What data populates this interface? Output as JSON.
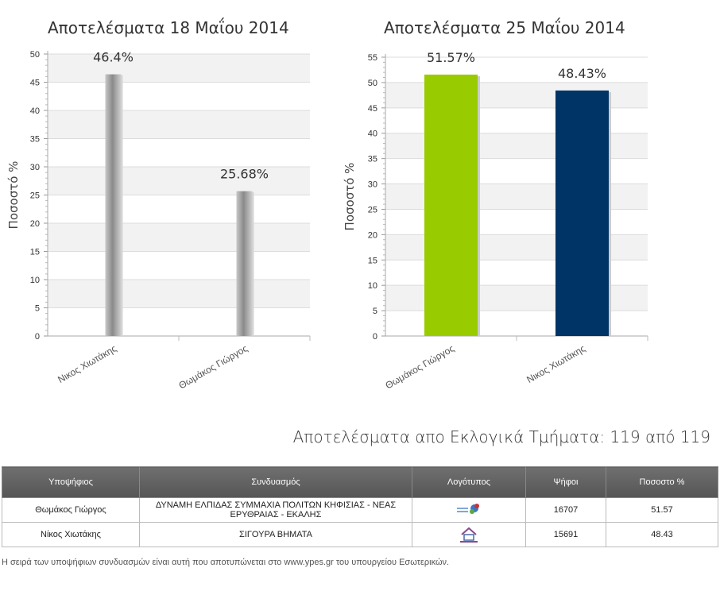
{
  "chart_data": [
    {
      "type": "bar",
      "title": "Αποτελέσματα 18 Μαΐου 2014",
      "ylabel": "Ποσοστό %",
      "ylim": [
        0,
        50
      ],
      "yticks": [
        0,
        5,
        10,
        15,
        20,
        25,
        30,
        35,
        40,
        45,
        50
      ],
      "categories": [
        "Νικος Χιωτάκης",
        "Θωμάκος Γιώργος"
      ],
      "values": [
        46.4,
        25.68
      ],
      "labels": [
        "46.4%",
        "25.68%"
      ],
      "colors": [
        "#999999",
        "#999999"
      ],
      "grid": true
    },
    {
      "type": "bar",
      "title": "Αποτελέσματα 25 Μαΐου 2014",
      "ylabel": "Ποσοστό %",
      "ylim": [
        0,
        55
      ],
      "yticks": [
        0,
        5,
        10,
        15,
        20,
        25,
        30,
        35,
        40,
        45,
        50,
        55
      ],
      "categories": [
        "Θωμάκος Γιώργος",
        "Νικος Χιωτάκης"
      ],
      "values": [
        51.57,
        48.43
      ],
      "labels": [
        "51.57%",
        "48.43%"
      ],
      "colors": [
        "#99cc00",
        "#003366"
      ],
      "grid": true
    }
  ],
  "summary": {
    "title": "Αποτελέσματα απο Εκλογικά Τμήματα: 119 από 119"
  },
  "table": {
    "headers": [
      "Υποψήφιος",
      "Συνδυασμός",
      "Λογότυπος",
      "Ψήφοι",
      "Ποσοστο %"
    ],
    "rows": [
      {
        "candidate": "Θωμάκος Γιώργος",
        "party": "ΔΥΝΑΜΗ ΕΛΠΙΔΑΣ ΣΥΜΜΑΧΙΑ ΠΟΛΙΤΩΝ ΚΗΦΙΣΙΑΣ - ΝΕΑΣ ΕΡΥΘΡΑΙΑΣ - ΕΚΑΛΗΣ",
        "logo": "party-logo-dynami-elpidas",
        "votes": "16707",
        "percent": "51.57"
      },
      {
        "candidate": "Νίκος Χιωτάκης",
        "party": "ΣΙΓΟΥΡΑ ΒΗΜΑΤΑ",
        "logo": "party-logo-sigoura-vimata",
        "votes": "15691",
        "percent": "48.43"
      }
    ]
  },
  "footnote": "Η σειρά των υποψήφιων συνδυασμών είναι αυτή που αποτυπώνεται στο www.ypes.gr του υπουργείου Εσωτερικών."
}
